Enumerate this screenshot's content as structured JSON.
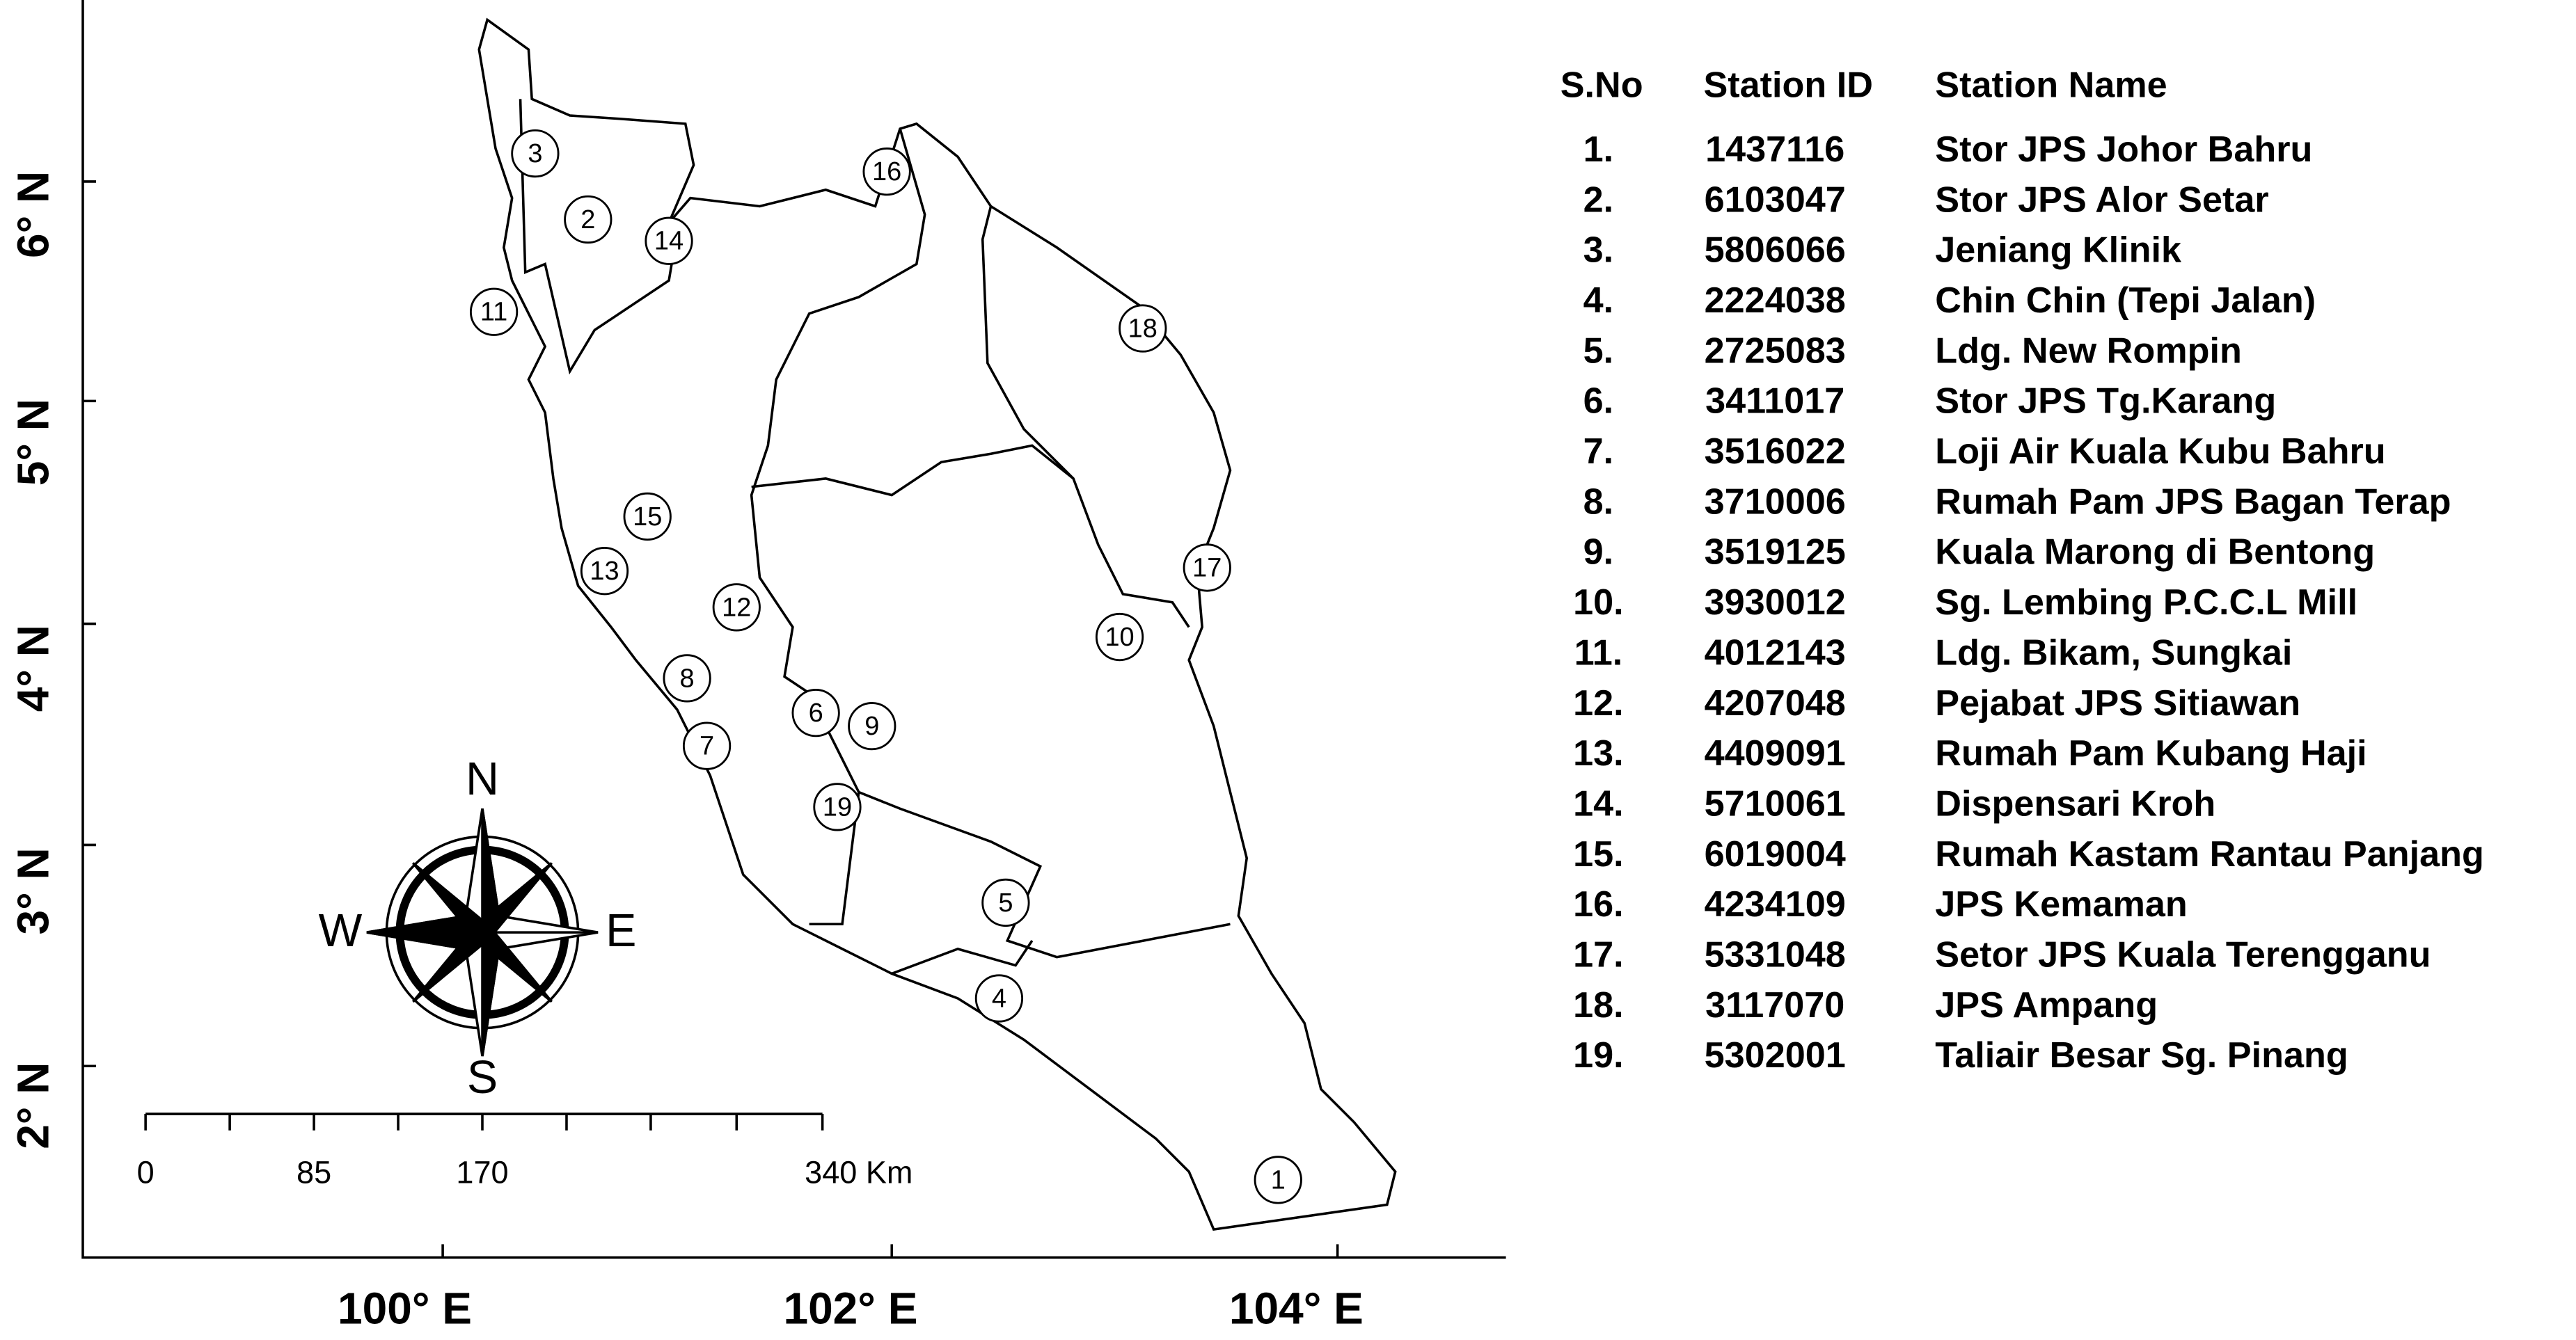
{
  "map": {
    "y_axis_labels": [
      "6° N",
      "5° N",
      "4° N",
      "3° N",
      "2° N"
    ],
    "x_axis_labels": [
      "100° E",
      "102° E",
      "104° E"
    ],
    "stations": [
      "1",
      "2",
      "3",
      "4",
      "5",
      "6",
      "7",
      "8",
      "9",
      "10",
      "11",
      "12",
      "13",
      "14",
      "15",
      "16",
      "17",
      "18",
      "19"
    ],
    "compass": {
      "n": "N",
      "s": "S",
      "e": "E",
      "w": "W"
    },
    "scale_labels": [
      "0",
      "85",
      "170",
      "340 Km"
    ]
  },
  "table": {
    "headers": [
      "S.No",
      "Station ID",
      "Station Name"
    ],
    "rows": [
      [
        "1.",
        "1437116",
        "Stor JPS Johor Bahru"
      ],
      [
        "2.",
        "6103047",
        "Stor JPS Alor Setar"
      ],
      [
        "3.",
        "5806066",
        "Jeniang Klinik"
      ],
      [
        "4.",
        "2224038",
        "Chin Chin (Tepi Jalan)"
      ],
      [
        "5.",
        "2725083",
        "Ldg. New Rompin"
      ],
      [
        "6.",
        "3411017",
        "Stor JPS Tg.Karang"
      ],
      [
        "7.",
        "3516022",
        "Loji Air Kuala Kubu Bahru"
      ],
      [
        "8.",
        "3710006",
        "Rumah Pam JPS Bagan Terap"
      ],
      [
        "9.",
        "3519125",
        "Kuala Marong di Bentong"
      ],
      [
        "10.",
        "3930012",
        "Sg. Lembing P.C.C.L Mill"
      ],
      [
        "11.",
        "4012143",
        "Ldg. Bikam, Sungkai"
      ],
      [
        "12.",
        "4207048",
        "Pejabat JPS Sitiawan"
      ],
      [
        "13.",
        "4409091",
        "Rumah Pam Kubang Haji"
      ],
      [
        "14.",
        "5710061",
        "Dispensari Kroh"
      ],
      [
        "15.",
        "6019004",
        "Rumah Kastam Rantau Panjang"
      ],
      [
        "16.",
        "4234109",
        "JPS Kemaman"
      ],
      [
        "17.",
        "5331048",
        "Setor JPS Kuala Terengganu"
      ],
      [
        "18.",
        "3117070",
        "JPS Ampang"
      ],
      [
        "19.",
        "5302001",
        "Taliair Besar Sg. Pinang"
      ]
    ]
  }
}
